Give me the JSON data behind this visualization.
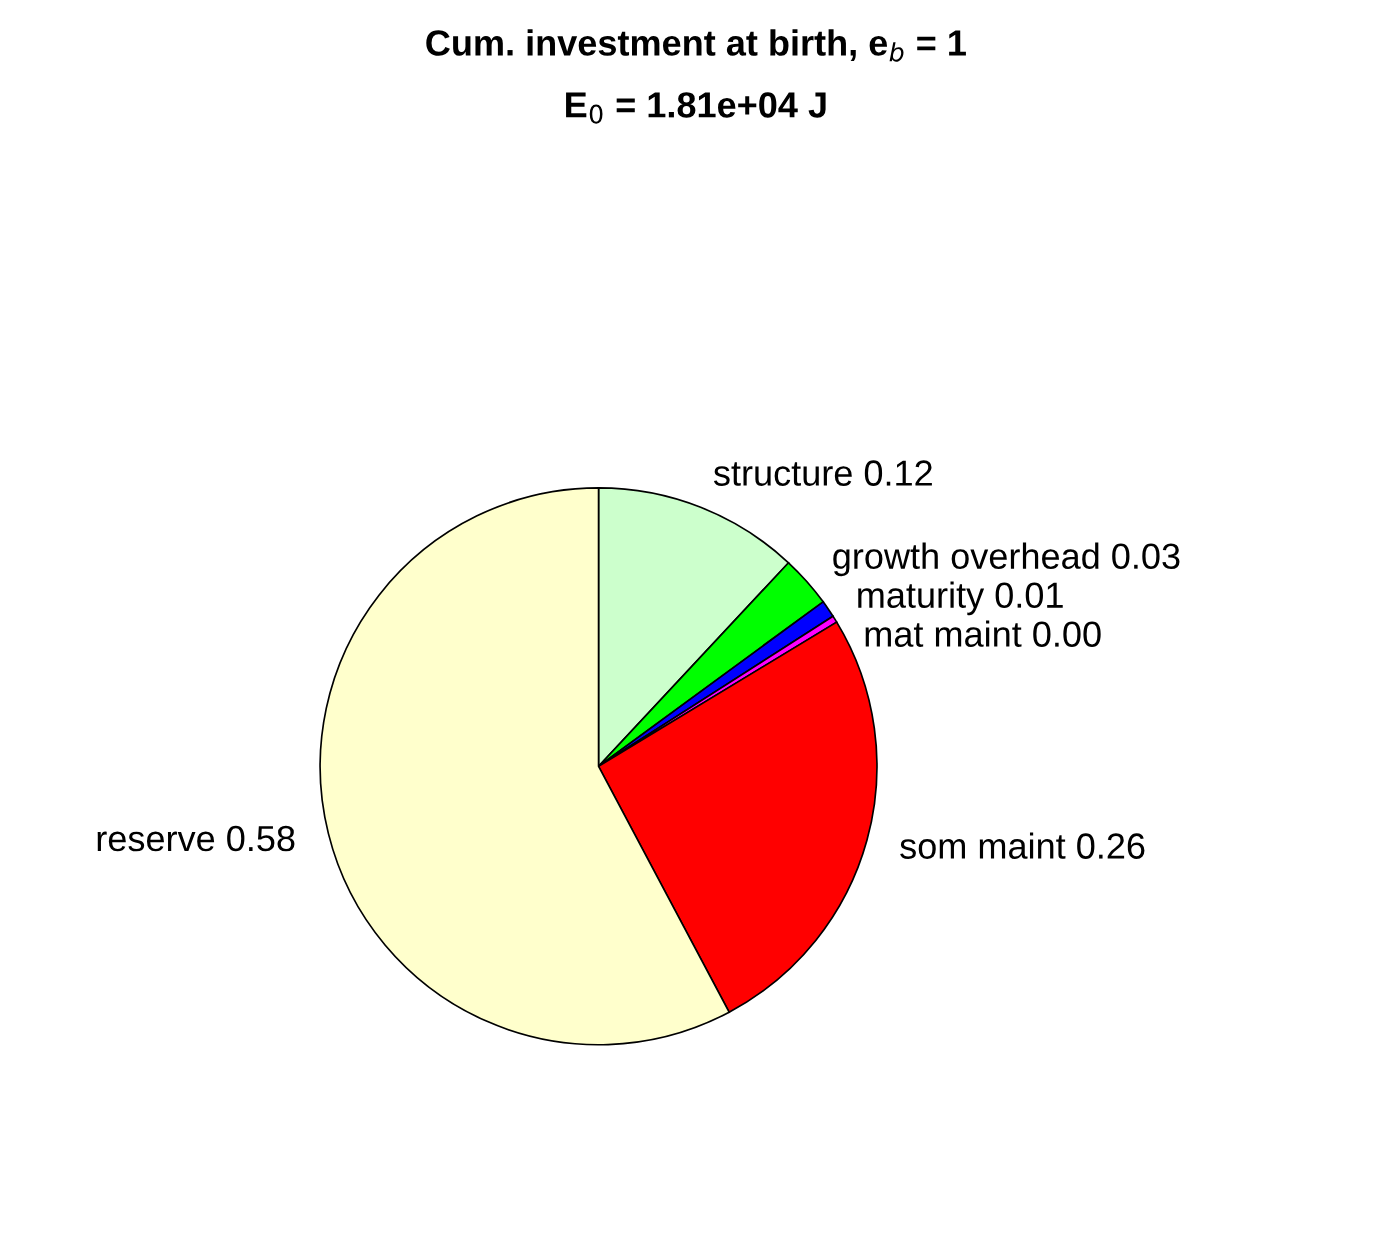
{
  "chart_data": {
    "type": "pie",
    "title": "Cum. investment at birth, e$_{b}$ = 1",
    "subtitle": "E$_{0}$ = 1.81e+04 J",
    "categories": [
      "structure",
      "growth overhead",
      "maturity",
      "mat maint",
      "som maint",
      "reserve"
    ],
    "values": [
      0.12,
      0.03,
      0.01,
      0.004,
      0.26,
      0.58
    ],
    "value_labels": [
      "0.12",
      "0.03",
      "0.01",
      "0.00",
      "0.26",
      "0.58"
    ],
    "colors": [
      "#ccffcc",
      "#00ff00",
      "#0000ff",
      "#ff00ff",
      "#ff0000",
      "#ffffcc"
    ]
  }
}
